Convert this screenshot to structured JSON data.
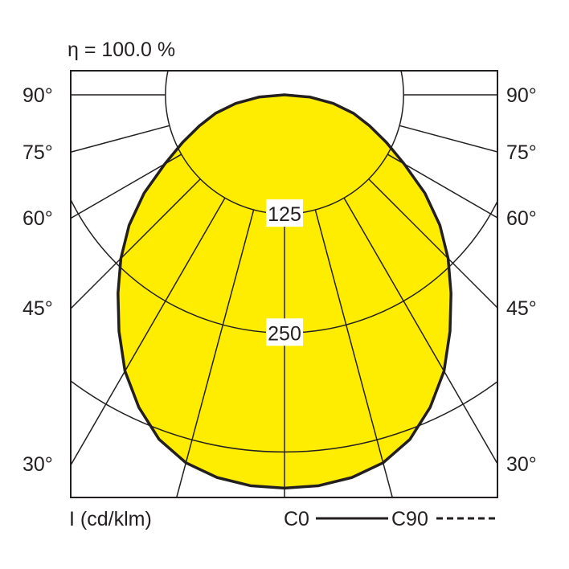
{
  "chart_data": {
    "type": "polar",
    "title": "η = 100.0 %",
    "unit_label": "I (cd/klm)",
    "angle_labels": [
      "90°",
      "75°",
      "60°",
      "45°",
      "30°"
    ],
    "angles_deg": [
      90,
      75,
      60,
      45,
      30
    ],
    "ring_values": [
      125,
      250,
      375
    ],
    "ring_labels": [
      "125",
      "250"
    ],
    "legend": {
      "c0": "C0",
      "c90": "C90",
      "c0_style": "solid",
      "c90_style": "dashed",
      "placement": "bottom-right"
    },
    "fill_color": "#FFED00",
    "series": [
      {
        "name": "C0",
        "theta_deg": [
          0,
          5,
          10,
          15,
          20,
          25,
          30,
          35,
          40,
          45,
          50,
          55,
          60,
          65,
          70,
          75,
          80,
          85,
          90
        ],
        "values": [
          413,
          412,
          408,
          400,
          385,
          362,
          335,
          303,
          272,
          243,
          213,
          180,
          145,
          118,
          95,
          75,
          52,
          27,
          0
        ]
      },
      {
        "name": "C90",
        "theta_deg": [
          0,
          5,
          10,
          15,
          20,
          25,
          30,
          35,
          40,
          45,
          50,
          55,
          60,
          65,
          70,
          75,
          80,
          85,
          90
        ],
        "values": [
          413,
          412,
          408,
          400,
          385,
          362,
          335,
          303,
          272,
          243,
          213,
          180,
          145,
          118,
          95,
          75,
          52,
          27,
          0
        ]
      }
    ]
  }
}
